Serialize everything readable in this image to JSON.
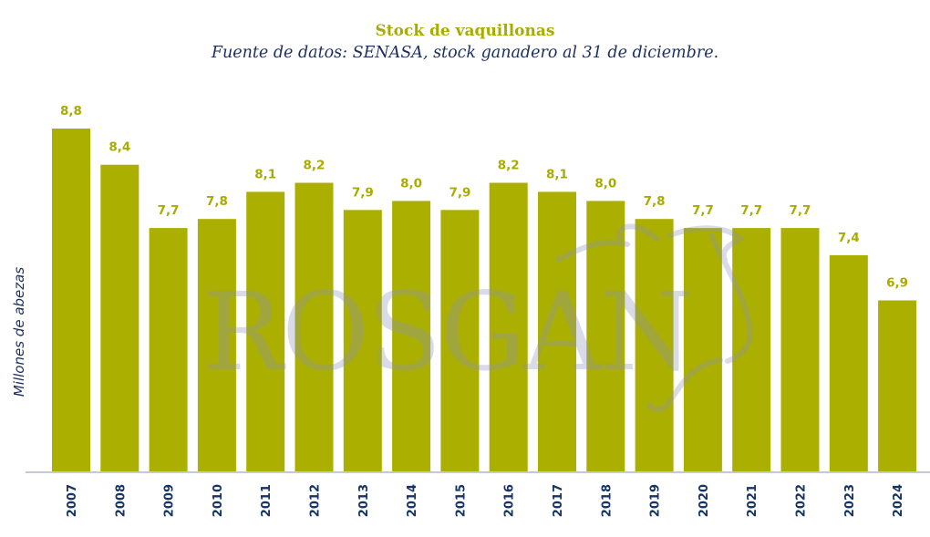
{
  "chart_data": {
    "type": "bar",
    "title": "Stock de vaquillonas",
    "subtitle": "Fuente de datos: SENASA, stock ganadero al 31 de diciembre.",
    "xlabel": "",
    "ylabel": "Millones de abezas",
    "ylim": [
      5.0,
      8.8
    ],
    "grid": false,
    "legend": "none",
    "watermark": "ROSGAN",
    "categories": [
      "2007",
      "2008",
      "2009",
      "2010",
      "2011",
      "2012",
      "2013",
      "2014",
      "2015",
      "2016",
      "2017",
      "2018",
      "2019",
      "2020",
      "2021",
      "2022",
      "2023",
      "2024"
    ],
    "values": [
      8.8,
      8.4,
      7.7,
      7.8,
      8.1,
      8.2,
      7.9,
      8.0,
      7.9,
      8.2,
      8.1,
      8.0,
      7.8,
      7.7,
      7.7,
      7.7,
      7.4,
      6.9
    ],
    "value_labels": [
      "8,8",
      "8,4",
      "7,7",
      "7,8",
      "8,1",
      "8,2",
      "7,9",
      "8,0",
      "7,9",
      "8,2",
      "8,1",
      "8,0",
      "7,8",
      "7,7",
      "7,7",
      "7,7",
      "7,4",
      "6,9"
    ],
    "colors": {
      "bar": "#abaf00",
      "title": "#a9ac00",
      "text": "#1c2f5e",
      "axis": "#c5c8d6"
    }
  }
}
